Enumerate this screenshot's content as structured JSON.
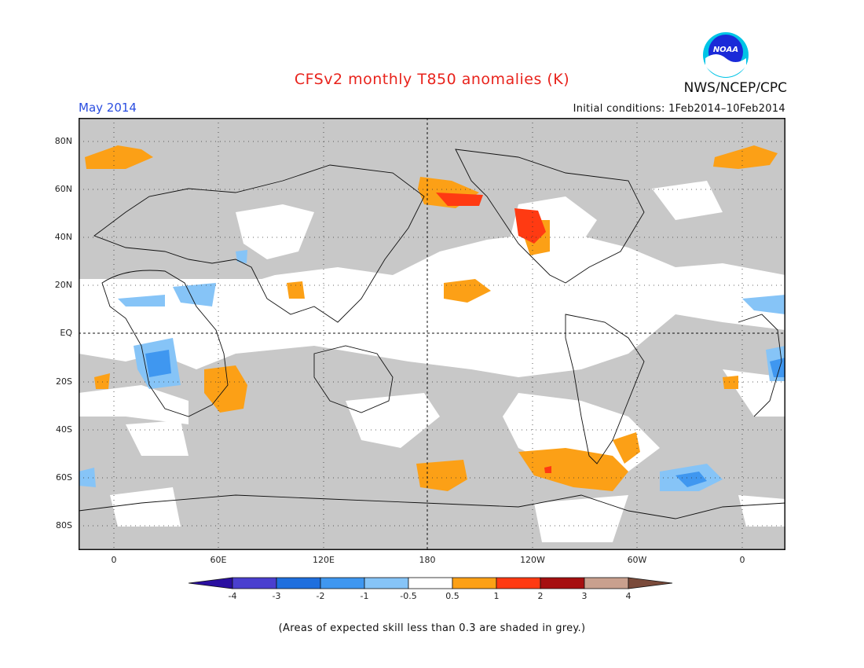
{
  "title": "CFSv2 monthly T850 anomalies (K)",
  "month": "May 2014",
  "initial_conditions": "Initial conditions: 1Feb2014–10Feb2014",
  "agency": "NWS/NCEP/CPC",
  "logo_text": "NOAA",
  "lat_labels": [
    "80N",
    "60N",
    "40N",
    "20N",
    "EQ",
    "20S",
    "40S",
    "60S",
    "80S"
  ],
  "lon_labels": [
    "0",
    "60E",
    "120E",
    "180",
    "120W",
    "60W",
    "0"
  ],
  "colorbar": {
    "labels": [
      "-4",
      "-3",
      "-2",
      "-1",
      "-0.5",
      "0.5",
      "1",
      "2",
      "3",
      "4"
    ],
    "colors": [
      "#2a0fa0",
      "#4a3fcf",
      "#1f6fde",
      "#3f97f0",
      "#86c4f7",
      "#ffffff",
      "#fca016",
      "#ff3a12",
      "#a60f10",
      "#c9a08e",
      "#7a4a3a"
    ]
  },
  "note": "(Areas of expected skill less than 0.3 are shaded in grey.)",
  "colors": {
    "grey": "#c8c8c8",
    "title": "#e8231c",
    "month": "#2a4de0"
  }
}
